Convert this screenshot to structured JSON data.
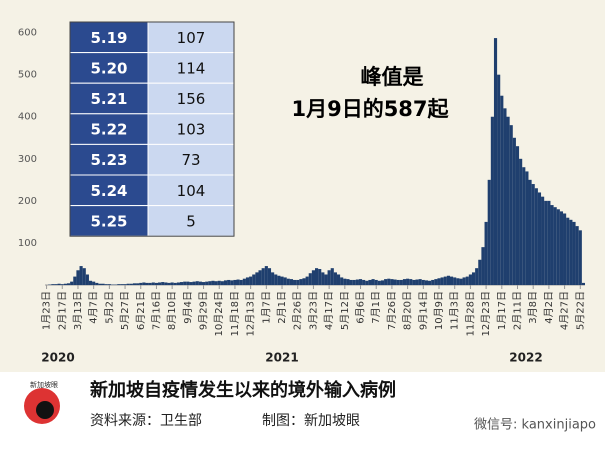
{
  "chart_data": {
    "type": "bar",
    "color": "#1f3f6e",
    "annotation": [
      "峰值是",
      "1月9日的587起"
    ],
    "year_labels": [
      "2020",
      "2021",
      "2022"
    ],
    "categories": [
      "1月23日",
      null,
      null,
      null,
      null,
      "2月17日",
      null,
      null,
      null,
      null,
      "3月13日",
      null,
      null,
      null,
      null,
      "4月7日",
      null,
      null,
      null,
      null,
      "5月2日",
      null,
      null,
      null,
      null,
      "5月27日",
      null,
      null,
      null,
      null,
      "6月21日",
      null,
      null,
      null,
      null,
      "7月16日",
      null,
      null,
      null,
      null,
      "8月10日",
      null,
      null,
      null,
      null,
      "9月4日",
      null,
      null,
      null,
      null,
      "9月29日",
      null,
      null,
      null,
      null,
      "10月24日",
      null,
      null,
      null,
      null,
      "11月18日",
      null,
      null,
      null,
      null,
      "12月13日",
      null,
      null,
      null,
      null,
      "1月7日",
      null,
      null,
      null,
      null,
      "2月1日",
      null,
      null,
      null,
      null,
      "2月26日",
      null,
      null,
      null,
      null,
      "3月23日",
      null,
      null,
      null,
      null,
      "4月17日",
      null,
      null,
      null,
      null,
      "5月12日",
      null,
      null,
      null,
      null,
      "6月6日",
      null,
      null,
      null,
      null,
      "7月1日",
      null,
      null,
      null,
      null,
      "7月26日",
      null,
      null,
      null,
      null,
      "8月20日",
      null,
      null,
      null,
      null,
      "9月14日",
      null,
      null,
      null,
      null,
      "10月9日",
      null,
      null,
      null,
      null,
      "11月3日",
      null,
      null,
      null,
      null,
      "11月28日",
      null,
      null,
      null,
      null,
      "12月23日",
      null,
      null,
      null,
      null,
      "1月17日",
      null,
      null,
      null,
      null,
      "2月11日",
      null,
      null,
      null,
      null,
      "3月8日",
      null,
      null,
      null,
      null,
      "4月2日",
      null,
      null,
      null,
      null,
      "4月27日",
      null,
      null,
      null,
      null,
      "5月22日",
      null
    ],
    "values": [
      0,
      1,
      2,
      2,
      3,
      2,
      3,
      4,
      8,
      20,
      35,
      45,
      40,
      25,
      10,
      8,
      5,
      3,
      3,
      2,
      2,
      1,
      1,
      2,
      2,
      2,
      3,
      3,
      4,
      4,
      5,
      6,
      5,
      5,
      6,
      5,
      6,
      7,
      6,
      5,
      6,
      5,
      6,
      7,
      8,
      8,
      7,
      8,
      9,
      8,
      7,
      8,
      9,
      10,
      9,
      10,
      9,
      11,
      12,
      11,
      12,
      13,
      12,
      15,
      18,
      20,
      25,
      30,
      35,
      40,
      45,
      40,
      30,
      25,
      22,
      20,
      18,
      15,
      14,
      12,
      12,
      14,
      16,
      20,
      28,
      35,
      40,
      38,
      30,
      25,
      35,
      40,
      30,
      25,
      18,
      15,
      14,
      12,
      12,
      13,
      14,
      12,
      10,
      12,
      14,
      12,
      10,
      11,
      14,
      15,
      14,
      13,
      12,
      12,
      14,
      15,
      14,
      12,
      13,
      14,
      12,
      11,
      10,
      12,
      14,
      16,
      18,
      20,
      22,
      20,
      18,
      16,
      15,
      18,
      20,
      25,
      30,
      40,
      60,
      90,
      150,
      250,
      400,
      587,
      500,
      450,
      420,
      400,
      380,
      350,
      330,
      300,
      280,
      270,
      250,
      240,
      230,
      220,
      210,
      200,
      200,
      190,
      185,
      180,
      175,
      170,
      160,
      155,
      150,
      140,
      130,
      5
    ],
    "ylim": [
      0,
      630
    ],
    "yticks": [
      100,
      200,
      300,
      400,
      500,
      600
    ]
  },
  "table": {
    "rows": [
      [
        "5.19",
        "107"
      ],
      [
        "5.20",
        "114"
      ],
      [
        "5.21",
        "156"
      ],
      [
        "5.22",
        "103"
      ],
      [
        "5.23",
        "73"
      ],
      [
        "5.24",
        "104"
      ],
      [
        "5.25",
        "5"
      ]
    ]
  },
  "footer": {
    "title": "新加坡自疫情发生以来的境外输入病例",
    "source": "资料来源：卫生部",
    "maker": "制图：新加坡眼",
    "logo": "新加坡眼",
    "wechat": "微信号: kanxinjiapo"
  }
}
